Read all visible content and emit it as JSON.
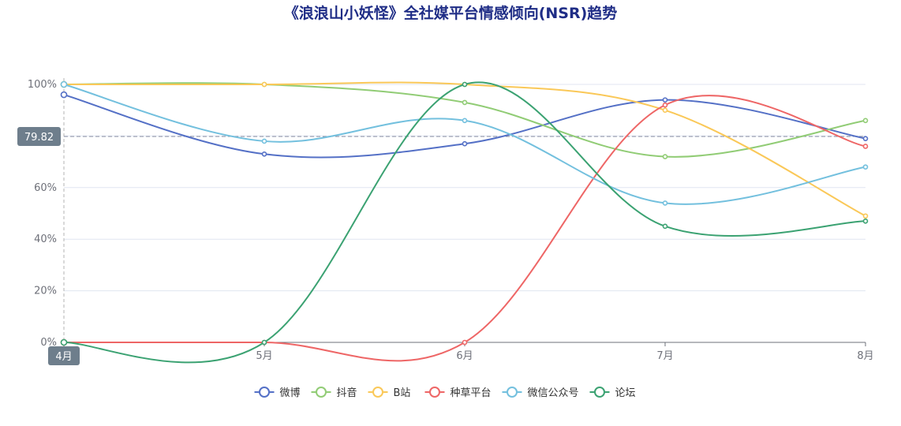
{
  "chart_data": {
    "type": "line",
    "title": "《浪浪山小妖怪》全社媒平台情感倾向(NSR)趋势",
    "categories": [
      "4月",
      "5月",
      "6月",
      "7月",
      "8月"
    ],
    "yticks": [
      "0%",
      "20%",
      "40%",
      "60%",
      "80%",
      "100%"
    ],
    "ylim": [
      0,
      100
    ],
    "smooth": true,
    "legend_position": "bottom",
    "pointer": {
      "category": "4月",
      "value_label": "79.82",
      "value": 79.82
    },
    "series": [
      {
        "name": "微博",
        "color": "#5470c6",
        "values": [
          96,
          73,
          77,
          94,
          79
        ]
      },
      {
        "name": "抖音",
        "color": "#91cc75",
        "values": [
          100,
          100,
          93,
          72,
          86
        ]
      },
      {
        "name": "B站",
        "color": "#fac858",
        "values": [
          100,
          100,
          100,
          90,
          49
        ]
      },
      {
        "name": "种草平台",
        "color": "#ee6666",
        "values": [
          0,
          0,
          0,
          92,
          76
        ]
      },
      {
        "name": "微信公众号",
        "color": "#73c0de",
        "values": [
          100,
          78,
          86,
          54,
          68
        ]
      },
      {
        "name": "论坛",
        "color": "#3ba272",
        "values": [
          0,
          0,
          100,
          45,
          47
        ]
      }
    ]
  }
}
